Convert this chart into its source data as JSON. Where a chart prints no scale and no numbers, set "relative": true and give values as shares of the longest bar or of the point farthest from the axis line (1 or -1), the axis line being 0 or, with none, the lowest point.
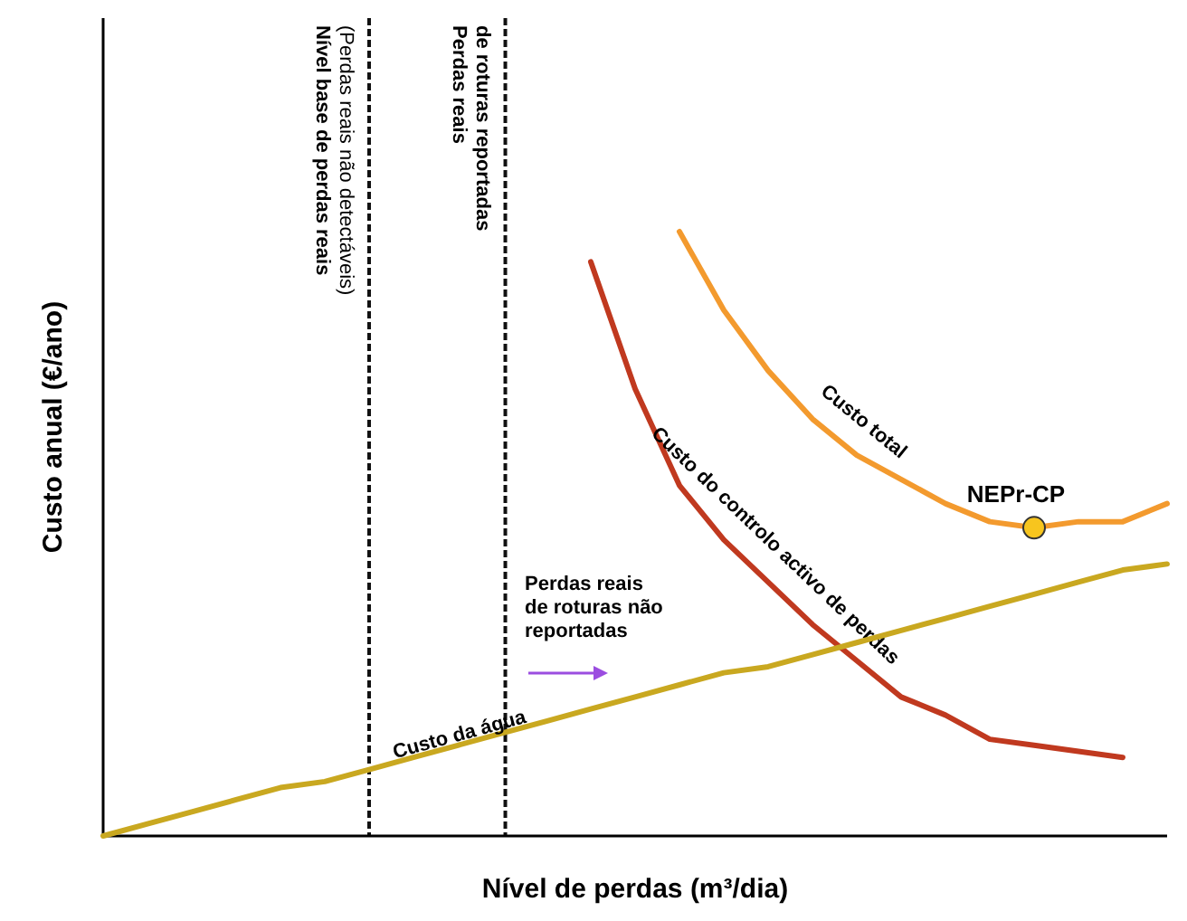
{
  "chart_data": {
    "type": "line",
    "relative": true,
    "xlabel": "Nível de perdas (m³/dia)",
    "ylabel": "Custo anual (€/ano)",
    "categories": [
      null,
      null,
      null,
      null,
      null,
      null,
      null,
      null,
      null,
      null,
      null,
      null,
      null,
      null,
      null,
      null,
      null,
      null,
      null,
      null,
      null,
      null,
      null,
      null,
      null
    ],
    "series": [
      {
        "name": "Custo total",
        "color": "#f39a2e",
        "values": [
          null,
          null,
          null,
          null,
          null,
          null,
          null,
          null,
          null,
          null,
          null,
          null,
          null,
          1,
          0.87,
          0.77,
          0.69,
          0.63,
          0.59,
          0.55,
          0.52,
          0.51,
          0.52,
          0.52,
          0.55
        ]
      },
      {
        "name": "Custo do controlo activo de perdas",
        "color": "#c0391f",
        "values": [
          null,
          null,
          null,
          null,
          null,
          null,
          null,
          null,
          null,
          null,
          null,
          0.95,
          0.74,
          0.58,
          0.49,
          0.42,
          0.35,
          0.29,
          0.23,
          0.2,
          0.16,
          0.15,
          0.14,
          0.13,
          null
        ]
      },
      {
        "name": "Custo da água",
        "color": "#c9a820",
        "values": [
          0,
          0.02,
          0.04,
          0.06,
          0.08,
          0.09,
          0.11,
          0.13,
          0.15,
          0.17,
          0.19,
          0.21,
          0.23,
          0.25,
          0.27,
          0.28,
          0.3,
          0.32,
          0.34,
          0.36,
          0.38,
          0.4,
          0.42,
          0.44,
          0.45
        ]
      }
    ],
    "ref_lines": [
      {
        "axis": "x",
        "label": "Nível base de perdas reais\n(Perdas reais não detectáveis)",
        "line_style": "dashed",
        "color": "#111111"
      },
      {
        "axis": "x",
        "label": "Perdas reais\nde roturas reportadas",
        "line_style": "dashed",
        "color": "#111111"
      }
    ],
    "annotations": [
      "Perdas reais\nde roturas não\nreportadas",
      {
        "text": "NEPr-CP",
        "y": 0.51
      }
    ],
    "legend": false,
    "grid": false
  }
}
